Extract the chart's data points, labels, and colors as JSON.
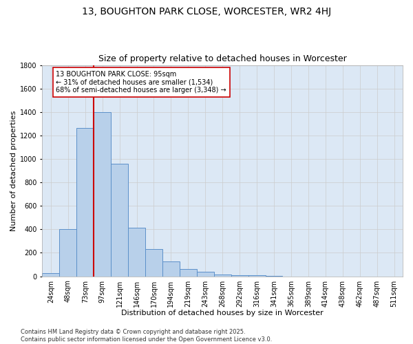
{
  "title": "13, BOUGHTON PARK CLOSE, WORCESTER, WR2 4HJ",
  "subtitle": "Size of property relative to detached houses in Worcester",
  "xlabel": "Distribution of detached houses by size in Worcester",
  "ylabel": "Number of detached properties",
  "categories": [
    "24sqm",
    "48sqm",
    "73sqm",
    "97sqm",
    "121sqm",
    "146sqm",
    "170sqm",
    "194sqm",
    "219sqm",
    "243sqm",
    "268sqm",
    "292sqm",
    "316sqm",
    "341sqm",
    "365sqm",
    "389sqm",
    "414sqm",
    "438sqm",
    "462sqm",
    "487sqm",
    "511sqm"
  ],
  "values": [
    25,
    400,
    1265,
    1400,
    960,
    415,
    235,
    125,
    65,
    40,
    18,
    10,
    7,
    3,
    0,
    0,
    0,
    0,
    0,
    0,
    0
  ],
  "bar_color": "#b8d0ea",
  "bar_edge_color": "#5b8fc9",
  "vline_x_idx": 3,
  "vline_color": "#cc0000",
  "annotation_text": "13 BOUGHTON PARK CLOSE: 95sqm\n← 31% of detached houses are smaller (1,534)\n68% of semi-detached houses are larger (3,348) →",
  "annotation_box_color": "#ffffff",
  "annotation_box_edge": "#cc0000",
  "ylim": [
    0,
    1800
  ],
  "yticks": [
    0,
    200,
    400,
    600,
    800,
    1000,
    1200,
    1400,
    1600,
    1800
  ],
  "grid_color": "#cccccc",
  "bg_color": "#dce8f5",
  "fig_bg_color": "#ffffff",
  "footer": "Contains HM Land Registry data © Crown copyright and database right 2025.\nContains public sector information licensed under the Open Government Licence v3.0.",
  "title_fontsize": 10,
  "subtitle_fontsize": 9,
  "xlabel_fontsize": 8,
  "ylabel_fontsize": 8,
  "tick_fontsize": 7,
  "annotation_fontsize": 7,
  "footer_fontsize": 6
}
